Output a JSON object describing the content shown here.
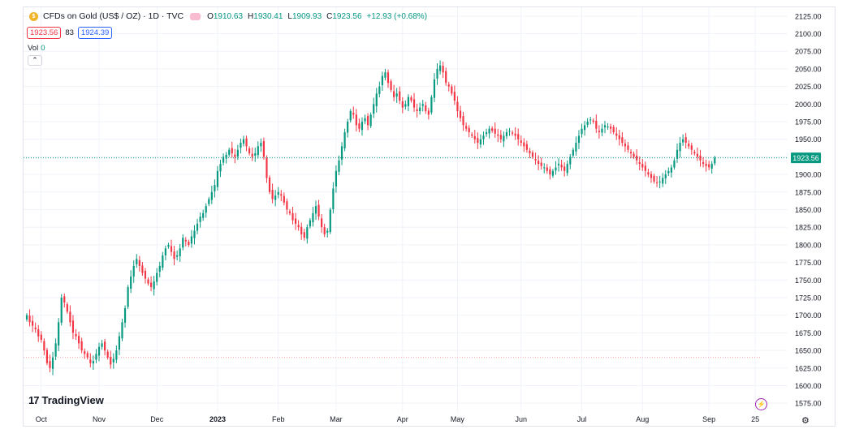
{
  "header": {
    "symbol_icon": "gold-coin-icon",
    "title": "CFDs on Gold (US$ / OZ) · 1D · TVC",
    "open_label": "O",
    "open_value": "1910.63",
    "high_label": "H",
    "high_value": "1930.41",
    "low_label": "L",
    "low_value": "1909.93",
    "close_label": "C",
    "close_value": "1923.56",
    "change": "+12.93 (+0.68%)"
  },
  "trade": {
    "sell": "1923.56",
    "spread": "83",
    "buy": "1924.39"
  },
  "volume": {
    "label": "Vol",
    "value": "0"
  },
  "brand": {
    "name": "TradingView"
  },
  "colors": {
    "up": "#089981",
    "down": "#f23645",
    "price_tag": "#089981",
    "grid": "#f0f3fa"
  },
  "chart_data": {
    "type": "candlestick",
    "title": "CFDs on Gold (US$ / OZ) · 1D · TVC",
    "ylim": [
      1562.5,
      2137.5
    ],
    "y_ticks": [
      "2125.00",
      "2100.00",
      "2075.00",
      "2050.00",
      "2025.00",
      "2000.00",
      "1975.00",
      "1950.00",
      "1925.00",
      "1900.00",
      "1875.00",
      "1850.00",
      "1825.00",
      "1800.00",
      "1775.00",
      "1750.00",
      "1725.00",
      "1700.00",
      "1675.00",
      "1650.00",
      "1625.00",
      "1600.00",
      "1575.00"
    ],
    "x_ticks": [
      {
        "label": "Oct",
        "index": 5
      },
      {
        "label": "Nov",
        "index": 25
      },
      {
        "label": "Dec",
        "index": 45
      },
      {
        "label": "2023",
        "index": 66
      },
      {
        "label": "Feb",
        "index": 87
      },
      {
        "label": "Mar",
        "index": 107
      },
      {
        "label": "Apr",
        "index": 130
      },
      {
        "label": "May",
        "index": 149
      },
      {
        "label": "Jun",
        "index": 171
      },
      {
        "label": "Jul",
        "index": 192
      },
      {
        "label": "Aug",
        "index": 213
      },
      {
        "label": "Sep",
        "index": 236
      },
      {
        "label": "25",
        "index": 252
      }
    ],
    "current_price": "1923.56",
    "reference_line": 1640,
    "closes": [
      1700,
      1690,
      1685,
      1680,
      1670,
      1665,
      1650,
      1632,
      1625,
      1640,
      1660,
      1690,
      1725,
      1718,
      1705,
      1690,
      1675,
      1670,
      1660,
      1650,
      1645,
      1640,
      1632,
      1635,
      1645,
      1655,
      1660,
      1650,
      1640,
      1630,
      1638,
      1650,
      1670,
      1690,
      1710,
      1740,
      1755,
      1770,
      1780,
      1770,
      1760,
      1752,
      1745,
      1740,
      1748,
      1760,
      1770,
      1785,
      1795,
      1800,
      1790,
      1780,
      1785,
      1795,
      1810,
      1805,
      1800,
      1812,
      1820,
      1830,
      1840,
      1845,
      1855,
      1865,
      1875,
      1885,
      1905,
      1915,
      1925,
      1928,
      1935,
      1930,
      1925,
      1935,
      1945,
      1950,
      1940,
      1930,
      1925,
      1930,
      1940,
      1945,
      1925,
      1895,
      1875,
      1865,
      1870,
      1875,
      1870,
      1860,
      1850,
      1845,
      1835,
      1830,
      1825,
      1815,
      1810,
      1825,
      1835,
      1845,
      1855,
      1840,
      1825,
      1815,
      1820,
      1850,
      1880,
      1905,
      1920,
      1940,
      1960,
      1975,
      1990,
      1985,
      1970,
      1965,
      1975,
      1980,
      1970,
      1985,
      2000,
      2015,
      2025,
      2040,
      2045,
      2030,
      2020,
      2010,
      2015,
      2005,
      1995,
      2000,
      2010,
      2005,
      1995,
      1990,
      1995,
      2000,
      1990,
      1985,
      2010,
      2035,
      2050,
      2055,
      2045,
      2030,
      2025,
      2015,
      2005,
      1990,
      1980,
      1970,
      1965,
      1960,
      1955,
      1950,
      1945,
      1950,
      1955,
      1960,
      1965,
      1962,
      1958,
      1955,
      1950,
      1955,
      1960,
      1962,
      1958,
      1955,
      1950,
      1945,
      1940,
      1935,
      1930,
      1925,
      1920,
      1915,
      1912,
      1910,
      1905,
      1900,
      1905,
      1910,
      1915,
      1910,
      1905,
      1915,
      1925,
      1935,
      1945,
      1955,
      1965,
      1970,
      1975,
      1978,
      1975,
      1965,
      1960,
      1965,
      1970,
      1968,
      1965,
      1960,
      1955,
      1950,
      1945,
      1940,
      1935,
      1930,
      1925,
      1920,
      1915,
      1910,
      1905,
      1900,
      1895,
      1890,
      1888,
      1890,
      1895,
      1900,
      1905,
      1910,
      1920,
      1935,
      1945,
      1950,
      1945,
      1940,
      1935,
      1930,
      1925,
      1920,
      1915,
      1912,
      1910,
      1915,
      1923.56
    ]
  }
}
